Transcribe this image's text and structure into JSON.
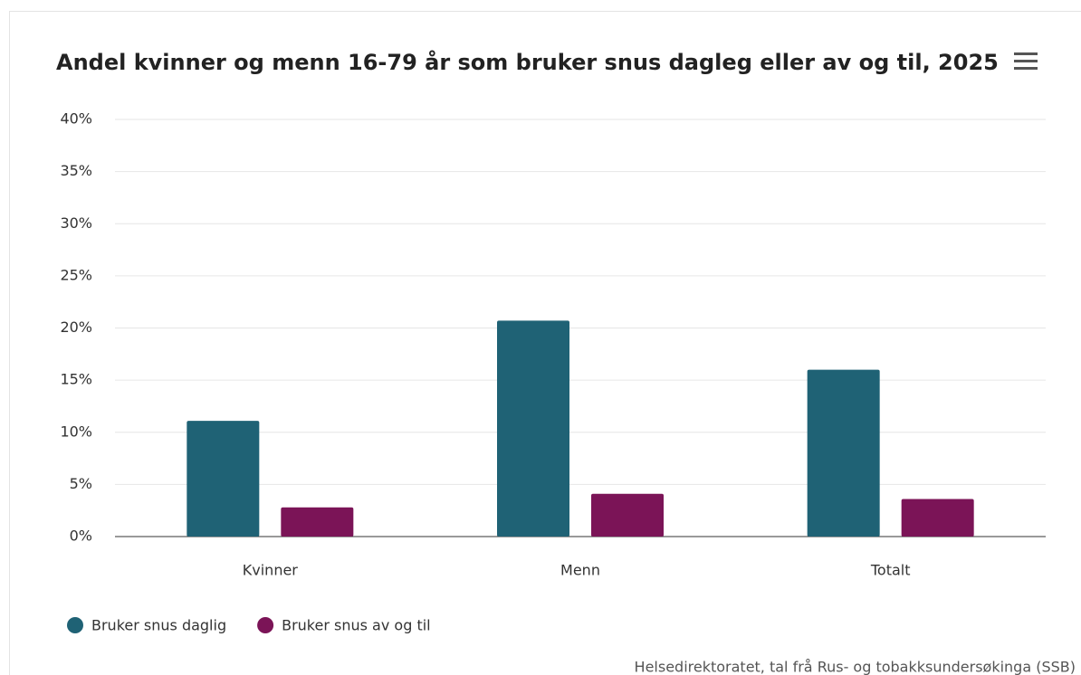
{
  "chart_data": {
    "type": "bar",
    "title": "Andel kvinner og menn 16-79 år som bruker snus dagleg eller av og til, 2025",
    "categories": [
      "Kvinner",
      "Menn",
      "Totalt"
    ],
    "series": [
      {
        "name": "Bruker snus daglig",
        "color": "#1f6275",
        "values": [
          11.1,
          20.7,
          16.0
        ]
      },
      {
        "name": "Bruker snus av og til",
        "color": "#7b1457",
        "values": [
          2.8,
          4.1,
          3.6
        ]
      }
    ],
    "ylim": [
      0,
      40
    ],
    "yticks": [
      {
        "value": 0,
        "label": "0%"
      },
      {
        "value": 5,
        "label": "5%"
      },
      {
        "value": 10,
        "label": "10%"
      },
      {
        "value": 15,
        "label": "15%"
      },
      {
        "value": 20,
        "label": "20%"
      },
      {
        "value": 25,
        "label": "25%"
      },
      {
        "value": 30,
        "label": "30%"
      },
      {
        "value": 35,
        "label": "35%"
      },
      {
        "value": 40,
        "label": "40%"
      }
    ],
    "grid": true,
    "legend": "bottom-left",
    "credits": "Helsedirektoratet, tal frå Rus- og tobakksundersøkinga (SSB)"
  }
}
